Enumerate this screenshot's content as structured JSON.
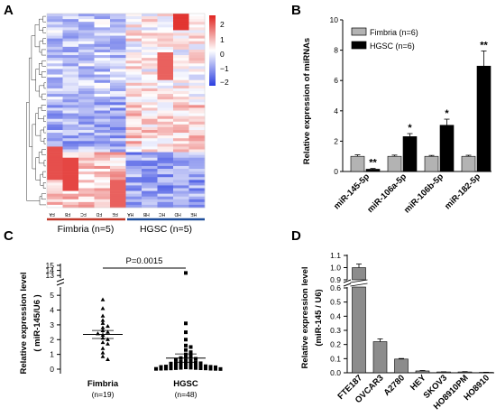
{
  "colors": {
    "heat_low": "#2b3ee0",
    "heat_mid": "#ffffff",
    "heat_high": "#e0231f",
    "fimbria_bar": "#b3b3b3",
    "hgsc_bar": "#000000",
    "fimbria_group_line": "#c0392b",
    "hgsc_group_line": "#1f4e9a",
    "cell_bar": "#8c8c8c"
  },
  "panels": {
    "A": "A",
    "B": "B",
    "C": "C",
    "D": "D"
  },
  "heatmap": {
    "scale_ticks": [
      "2",
      "1",
      "0",
      "−1",
      "−2"
    ],
    "scale_min": -2.5,
    "scale_max": 2.5,
    "columns": [
      "FA",
      "FB",
      "FC",
      "FD",
      "FE",
      "HA",
      "HB",
      "HC",
      "HD",
      "HE"
    ],
    "group_fimbria": "Fimbria (n=5)",
    "group_hgsc": "HGSC (n=5)"
  },
  "chart_data": [
    {
      "panel": "B",
      "type": "bar",
      "ylabel": "Relative expression of miRNAs",
      "categories": [
        "miR-145-5p",
        "miR-106a-5p",
        "miR-106b-5p",
        "miR-182-5p"
      ],
      "series": [
        {
          "name": "Fimbria (n=6)",
          "values": [
            1.0,
            1.0,
            1.0,
            1.0
          ],
          "errors": [
            0.1,
            0.08,
            0.06,
            0.07
          ]
        },
        {
          "name": "HGSC (n=6)",
          "values": [
            0.15,
            2.3,
            3.05,
            6.95
          ],
          "errors": [
            0.05,
            0.2,
            0.4,
            1.0
          ]
        }
      ],
      "significance": [
        "**",
        "*",
        "*",
        "**"
      ],
      "ylim": [
        0,
        10
      ],
      "yticks": [
        0,
        2,
        4,
        6,
        8,
        10
      ]
    },
    {
      "panel": "C",
      "type": "scatter",
      "ylabel": "Relative expression level",
      "ylabel2": "( miR-145/U6 )",
      "categories": [
        "Fimbria",
        "HGSC"
      ],
      "n_labels": [
        "(n=19)",
        "(n=48)"
      ],
      "pvalue": "P=0.0015",
      "yticks_lower": [
        0,
        1,
        2,
        3,
        4,
        5
      ],
      "yticks_upper": [
        13,
        14,
        15
      ],
      "ylim_lower": [
        0,
        5.5
      ],
      "ylim_upper": [
        12.5,
        15
      ],
      "means": [
        2.35,
        0.75
      ],
      "sems": [
        0.27,
        0.28
      ],
      "points": [
        [
          4.7,
          4.1,
          3.6,
          3.3,
          3.1,
          2.9,
          2.8,
          2.6,
          2.5,
          2.4,
          2.3,
          2.1,
          2.0,
          1.8,
          1.7,
          1.4,
          1.1,
          0.85,
          0.65
        ],
        [
          13.5,
          3.1,
          2.5,
          2.0,
          1.6,
          1.5,
          1.3,
          1.15,
          1.0,
          0.9,
          0.85,
          0.8,
          0.75,
          0.7,
          0.65,
          0.6,
          0.55,
          0.5,
          0.45,
          0.42,
          0.4,
          0.38,
          0.35,
          0.32,
          0.3,
          0.28,
          0.26,
          0.24,
          0.22,
          0.2,
          0.18,
          0.16,
          0.15,
          0.13,
          0.12,
          0.1,
          0.09,
          0.08,
          0.07,
          0.06,
          0.05,
          0.05,
          0.04,
          0.03,
          0.03,
          0.02,
          0.02,
          0.01
        ]
      ]
    },
    {
      "panel": "D",
      "type": "bar",
      "ylabel": "Relative expression level",
      "ylabel2": "(miR-145 / U6)",
      "categories": [
        "FTE187",
        "OVCAR3",
        "A2780",
        "HEY",
        "SKOV3",
        "HO8910PM",
        "HO8910"
      ],
      "values": [
        1.0,
        0.22,
        0.097,
        0.013,
        0.006,
        0.006,
        0.003
      ],
      "errors": [
        0.03,
        0.02,
        0.004,
        0.003,
        0.001,
        0.002,
        0.001
      ],
      "yticks_lower": [
        "0.0",
        "0.1",
        "0.2",
        "0.3",
        "0.4",
        "0.5",
        "0.6"
      ],
      "yticks_upper": [
        "0.9",
        "1.0",
        "1.1"
      ],
      "ylim_lower": [
        0,
        0.6
      ],
      "ylim_upper": [
        0.9,
        1.1
      ]
    }
  ]
}
